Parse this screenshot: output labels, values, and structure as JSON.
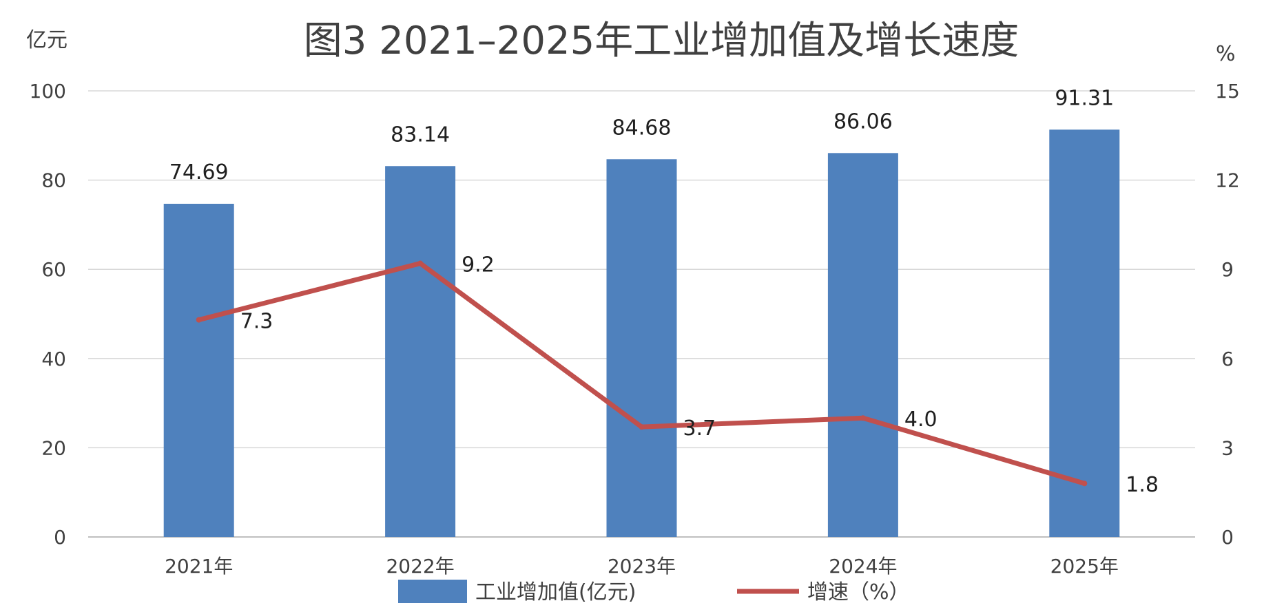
{
  "chart_data": {
    "type": "bar",
    "title": "图3 2021–2025年工业增加值及增长速度",
    "y_unit_left": "亿元",
    "y_unit_right": "%",
    "categories": [
      "2021年",
      "2022年",
      "2023年",
      "2024年",
      "2025年"
    ],
    "ylim_left": [
      0,
      100
    ],
    "yticks_left": [
      "0",
      "20",
      "40",
      "60",
      "80",
      "100"
    ],
    "ylim_right": [
      0,
      15
    ],
    "yticks_right": [
      "0",
      "3",
      "6",
      "9",
      "12",
      "15"
    ],
    "series": [
      {
        "name": "工业增加值(亿元)",
        "type": "bar",
        "axis": "left",
        "values": [
          74.69,
          83.14,
          84.68,
          86.06,
          91.31
        ],
        "labels": [
          "74.69",
          "83.14",
          "84.68",
          "86.06",
          "91.31"
        ],
        "color": "#4f81bd"
      },
      {
        "name": "增速（%）",
        "type": "line",
        "axis": "right",
        "values": [
          7.3,
          9.2,
          3.7,
          4.0,
          1.8
        ],
        "labels": [
          "7.3",
          "9.2",
          "3.7",
          "4.0",
          "1.8"
        ],
        "color": "#c0504d"
      }
    ],
    "grid": true,
    "legend": "bottom"
  }
}
